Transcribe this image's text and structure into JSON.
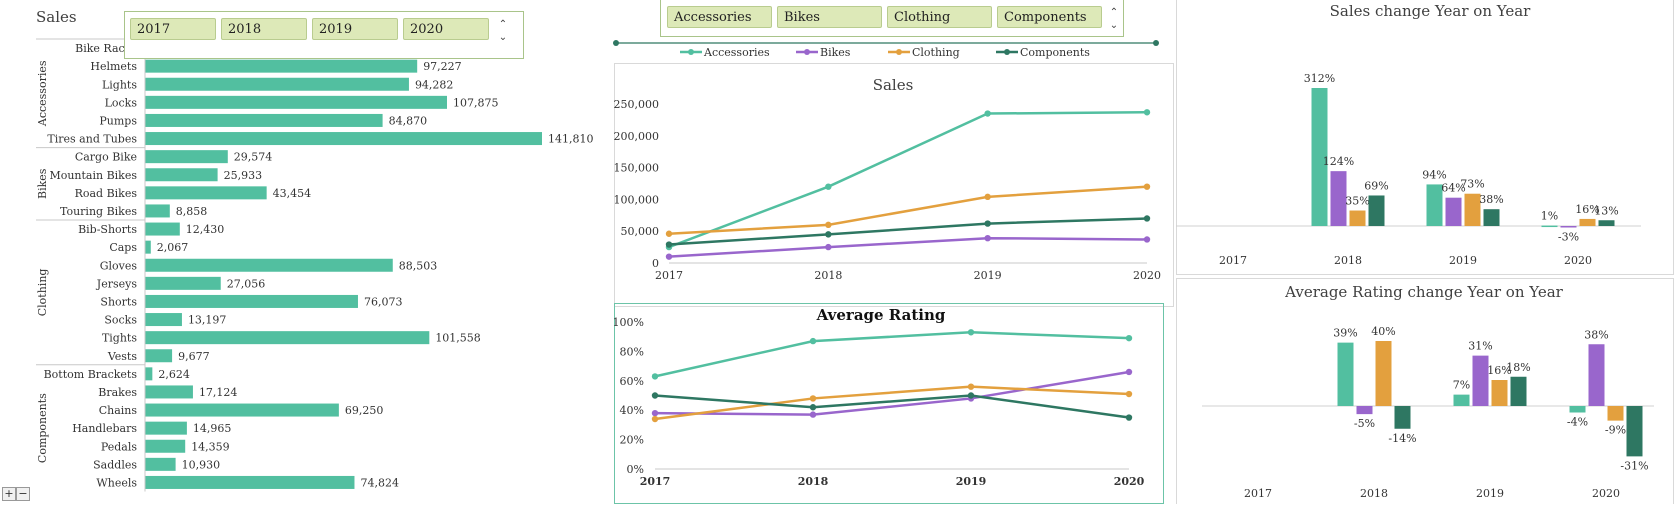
{
  "colors": {
    "accessories": "#52bfa0",
    "bikes": "#9966cc",
    "clothing": "#e3a03e",
    "components": "#2e7762",
    "slicer_btn": "#dde9b8",
    "slicer_border": "#a9c48a"
  },
  "year_slicer": {
    "items": [
      "2017",
      "2018",
      "2019",
      "2020"
    ],
    "partial_item": "Bike Rac"
  },
  "category_slicer": {
    "items": [
      "Accessories",
      "Bikes",
      "Clothing",
      "Components"
    ]
  },
  "legend": [
    "Accessories",
    "Bikes",
    "Clothing",
    "Components"
  ],
  "chart_data": [
    {
      "id": "sales-by-product",
      "type": "bar",
      "orientation": "horizontal",
      "title": "Sales",
      "groups": [
        {
          "name": "Accessories",
          "categories": [
            "Bike Racks",
            "Helmets",
            "Lights",
            "Locks",
            "Pumps",
            "Tires and Tubes"
          ],
          "values": [
            null,
            97227,
            94282,
            107875,
            84870,
            141810
          ],
          "labels": [
            "",
            "97,227",
            "94,282",
            "107,875",
            "84,870",
            "141,810"
          ]
        },
        {
          "name": "Bikes",
          "categories": [
            "Cargo Bike",
            "Mountain Bikes",
            "Road Bikes",
            "Touring Bikes"
          ],
          "values": [
            29574,
            25933,
            43454,
            8858
          ],
          "labels": [
            "29,574",
            "25,933",
            "43,454",
            "8,858"
          ]
        },
        {
          "name": "Clothing",
          "categories": [
            "Bib-Shorts",
            "Caps",
            "Gloves",
            "Jerseys",
            "Shorts",
            "Socks",
            "Tights",
            "Vests"
          ],
          "values": [
            12430,
            2067,
            88503,
            27056,
            76073,
            13197,
            101558,
            9677
          ],
          "labels": [
            "12,430",
            "2,067",
            "88,503",
            "27,056",
            "76,073",
            "13,197",
            "101,558",
            "9,677"
          ]
        },
        {
          "name": "Components",
          "categories": [
            "Bottom Brackets",
            "Brakes",
            "Chains",
            "Handlebars",
            "Pedals",
            "Saddles",
            "Wheels"
          ],
          "values": [
            2624,
            17124,
            69250,
            14965,
            14359,
            10930,
            74824
          ],
          "labels": [
            "2,624",
            "17,124",
            "69,250",
            "14,965",
            "14,359",
            "10,930",
            "74,824"
          ]
        }
      ]
    },
    {
      "id": "sales-line",
      "type": "line",
      "title": "Sales",
      "x": [
        "2017",
        "2018",
        "2019",
        "2020"
      ],
      "y_ticks": [
        "0",
        "50,000",
        "100,000",
        "150,000",
        "200,000",
        "250,000"
      ],
      "ylim": [
        0,
        250000
      ],
      "series": [
        {
          "name": "Accessories",
          "values": [
            25000,
            120000,
            235000,
            237000
          ]
        },
        {
          "name": "Bikes",
          "values": [
            10000,
            25000,
            39000,
            37000
          ]
        },
        {
          "name": "Clothing",
          "values": [
            46000,
            60000,
            104000,
            120000
          ]
        },
        {
          "name": "Components",
          "values": [
            29000,
            45000,
            62000,
            70000
          ]
        }
      ]
    },
    {
      "id": "rating-line",
      "type": "line",
      "title": "Average Rating",
      "x": [
        "2017",
        "2018",
        "2019",
        "2020"
      ],
      "y_ticks": [
        "0%",
        "20%",
        "40%",
        "60%",
        "80%",
        "100%"
      ],
      "ylim": [
        0,
        1
      ],
      "series": [
        {
          "name": "Accessories",
          "values": [
            0.63,
            0.87,
            0.93,
            0.89
          ]
        },
        {
          "name": "Bikes",
          "values": [
            0.38,
            0.37,
            0.48,
            0.66
          ]
        },
        {
          "name": "Clothing",
          "values": [
            0.34,
            0.48,
            0.56,
            0.51
          ]
        },
        {
          "name": "Components",
          "values": [
            0.5,
            0.42,
            0.5,
            0.35
          ]
        }
      ]
    },
    {
      "id": "sales-change",
      "type": "bar",
      "title": "Sales change Year on Year",
      "categories": [
        "2017",
        "2018",
        "2019",
        "2020"
      ],
      "series": [
        {
          "name": "Accessories",
          "values": [
            null,
            312,
            94,
            1
          ],
          "labels": [
            "",
            "312%",
            "94%",
            "1%"
          ]
        },
        {
          "name": "Bikes",
          "values": [
            null,
            124,
            64,
            -3
          ],
          "labels": [
            "",
            "124%",
            "64%",
            "-3%"
          ]
        },
        {
          "name": "Clothing",
          "values": [
            null,
            35,
            73,
            16
          ],
          "labels": [
            "",
            "35%",
            "73%",
            "16%"
          ]
        },
        {
          "name": "Components",
          "values": [
            null,
            69,
            38,
            13
          ],
          "labels": [
            "",
            "69%",
            "38%",
            "13%"
          ]
        }
      ]
    },
    {
      "id": "rating-change",
      "type": "bar",
      "title": "Average Rating change Year on Year",
      "categories": [
        "2017",
        "2018",
        "2019",
        "2020"
      ],
      "series": [
        {
          "name": "Accessories",
          "values": [
            null,
            39,
            7,
            -4
          ],
          "labels": [
            "",
            "39%",
            "7%",
            "-4%"
          ]
        },
        {
          "name": "Bikes",
          "values": [
            null,
            -5,
            31,
            38
          ],
          "labels": [
            "",
            "-5%",
            "31%",
            "38%"
          ]
        },
        {
          "name": "Clothing",
          "values": [
            null,
            40,
            16,
            -9
          ],
          "labels": [
            "",
            "40%",
            "16%",
            "-9%"
          ]
        },
        {
          "name": "Components",
          "values": [
            null,
            -14,
            18,
            -31
          ],
          "labels": [
            "",
            "-14%",
            "18%",
            "-31%"
          ]
        }
      ]
    }
  ]
}
